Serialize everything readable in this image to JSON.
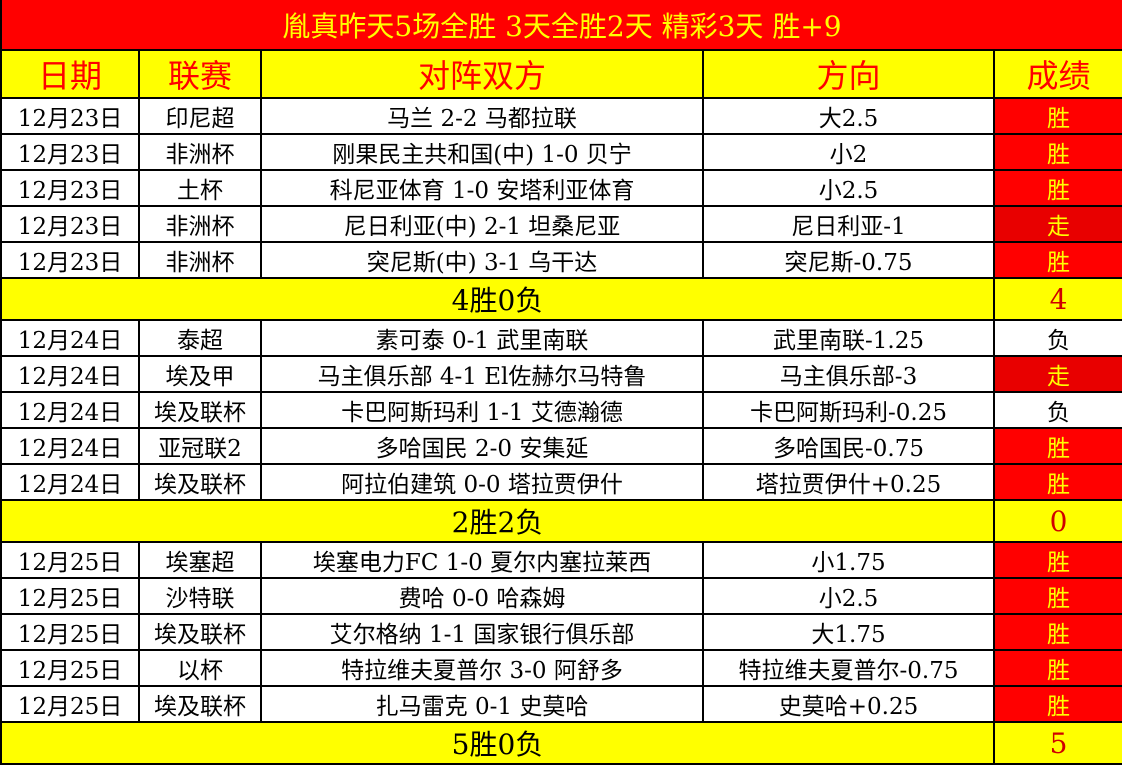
{
  "title": "胤真昨天5场全胜  3天全胜2天  精彩3天  胜+9",
  "headers": [
    "日期",
    "联赛",
    "对阵双方",
    "方向",
    "成绩"
  ],
  "colors": {
    "win": "#ff0000",
    "push": "#e80000",
    "loss": "#ffffff",
    "header_bg": "#ffff00",
    "title_bg": "#ff0000"
  },
  "rows": [
    {
      "date": "12月23日",
      "league": "印尼超",
      "match": "马兰 2-2 马都拉联",
      "pick": "大2.5",
      "result": "胜",
      "type": "win"
    },
    {
      "date": "12月23日",
      "league": "非洲杯",
      "match": "刚果民主共和国(中) 1-0 贝宁",
      "pick": "小2",
      "result": "胜",
      "type": "win"
    },
    {
      "date": "12月23日",
      "league": "土杯",
      "match": "科尼亚体育 1-0 安塔利亚体育",
      "pick": "小2.5",
      "result": "胜",
      "type": "win"
    },
    {
      "date": "12月23日",
      "league": "非洲杯",
      "match": "尼日利亚(中) 2-1 坦桑尼亚",
      "pick": "尼日利亚-1",
      "result": "走",
      "type": "push"
    },
    {
      "date": "12月23日",
      "league": "非洲杯",
      "match": "突尼斯(中) 3-1 乌干达",
      "pick": "突尼斯-0.75",
      "result": "胜",
      "type": "win"
    },
    {
      "summary": "4胜0负",
      "score": "4"
    },
    {
      "date": "12月24日",
      "league": "泰超",
      "match": "素可泰 0-1 武里南联",
      "pick": "武里南联-1.25",
      "result": "负",
      "type": "loss"
    },
    {
      "date": "12月24日",
      "league": "埃及甲",
      "match": "马主俱乐部 4-1 El佐赫尔马特鲁",
      "pick": "马主俱乐部-3",
      "result": "走",
      "type": "push"
    },
    {
      "date": "12月24日",
      "league": "埃及联杯",
      "match": "卡巴阿斯玛利 1-1 艾德瀚德",
      "pick": "卡巴阿斯玛利-0.25",
      "result": "负",
      "type": "loss"
    },
    {
      "date": "12月24日",
      "league": "亚冠联2",
      "match": "多哈国民 2-0 安集延",
      "pick": "多哈国民-0.75",
      "result": "胜",
      "type": "win"
    },
    {
      "date": "12月24日",
      "league": "埃及联杯",
      "match": "阿拉伯建筑 0-0 塔拉贾伊什",
      "pick": "塔拉贾伊什+0.25",
      "result": "胜",
      "type": "win"
    },
    {
      "summary": "2胜2负",
      "score": "0"
    },
    {
      "date": "12月25日",
      "league": "埃塞超",
      "match": "埃塞电力FC 1-0 夏尔内塞拉莱西",
      "pick": "小1.75",
      "result": "胜",
      "type": "win"
    },
    {
      "date": "12月25日",
      "league": "沙特联",
      "match": "费哈 0-0 哈森姆",
      "pick": "小2.5",
      "result": "胜",
      "type": "win"
    },
    {
      "date": "12月25日",
      "league": "埃及联杯",
      "match": "艾尔格纳 1-1 国家银行俱乐部",
      "pick": "大1.75",
      "result": "胜",
      "type": "win"
    },
    {
      "date": "12月25日",
      "league": "以杯",
      "match": "特拉维夫夏普尔 3-0 阿舒多",
      "pick": "特拉维夫夏普尔-0.75",
      "result": "胜",
      "type": "win"
    },
    {
      "date": "12月25日",
      "league": "埃及联杯",
      "match": "扎马雷克 0-1 史莫哈",
      "pick": "史莫哈+0.25",
      "result": "胜",
      "type": "win"
    },
    {
      "summary": "5胜0负",
      "score": "5"
    }
  ]
}
